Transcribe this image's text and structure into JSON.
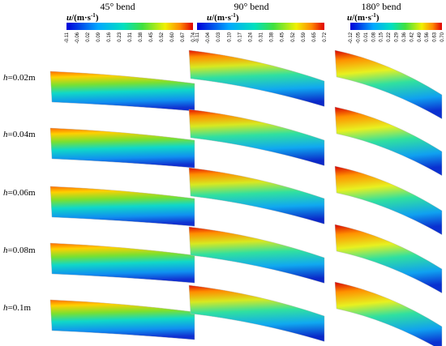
{
  "columns": [
    {
      "title": "45° bend",
      "unit": {
        "symbol": "u",
        "text": "/(m·s",
        "exponent": "-1",
        "close": ")"
      },
      "ticks": [
        "-0.11",
        "-0.06",
        "0.02",
        "0.09",
        "0.16",
        "0.23",
        "0.31",
        "0.38",
        "0.45",
        "0.52",
        "0.60",
        "0.67",
        "0.74"
      ]
    },
    {
      "title": "90° bend",
      "unit": {
        "symbol": "u",
        "text": "/(m·s",
        "exponent": "-1",
        "close": ")"
      },
      "ticks": [
        "-0.11",
        "-0.04",
        "0.03",
        "0.10",
        "0.17",
        "0.24",
        "0.31",
        "0.38",
        "0.45",
        "0.52",
        "0.59",
        "0.65",
        "0.72"
      ]
    },
    {
      "title": "180° bend",
      "unit": {
        "symbol": "u",
        "text": "/(m·s",
        "exponent": "-1",
        "close": ")"
      },
      "ticks": [
        "-0.12",
        "-0.05",
        "0.01",
        "0.08",
        "0.15",
        "0.22",
        "0.29",
        "0.36",
        "0.42",
        "0.49",
        "0.56",
        "0.63",
        "0.70"
      ]
    }
  ],
  "rows": [
    {
      "symbol": "h",
      "text": "=0.02m"
    },
    {
      "symbol": "h",
      "text": "=0.04m"
    },
    {
      "symbol": "h",
      "text": "=0.06m"
    },
    {
      "symbol": "h",
      "text": "=0.08m"
    },
    {
      "symbol": "h",
      "text": "=0.1m"
    }
  ]
}
